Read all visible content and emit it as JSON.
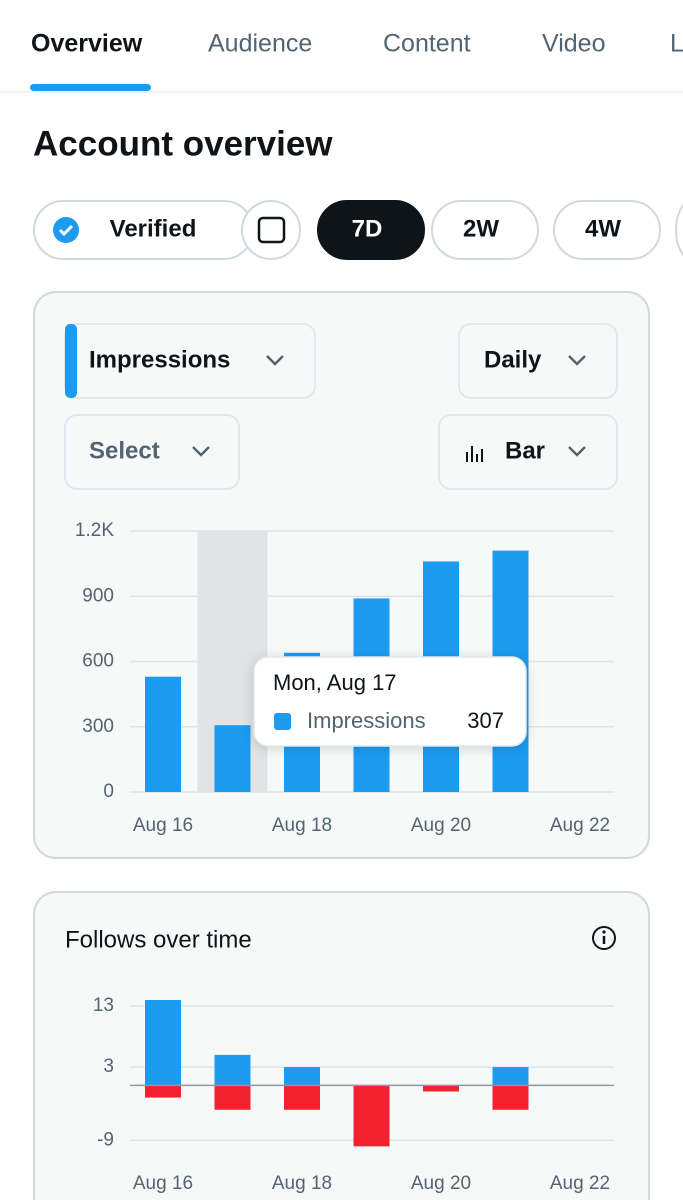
{
  "tabs": [
    "Overview",
    "Audience",
    "Content",
    "Video",
    "L"
  ],
  "active_tab": 0,
  "header": {
    "title": "Account overview"
  },
  "filters": {
    "verified": "Verified",
    "ranges": [
      "7D",
      "2W",
      "4W"
    ],
    "active_range": 0
  },
  "controls": {
    "metric": "Impressions",
    "interval": "Daily",
    "compare": "Select",
    "chart_type": "Bar"
  },
  "tooltip": {
    "title": "Mon, Aug 17",
    "label": "Impressions",
    "index": 1
  },
  "chart_data": [
    {
      "type": "bar",
      "categories": [
        "Aug 16",
        null,
        "Aug 18",
        null,
        "Aug 20",
        null,
        "Aug 22"
      ],
      "values": [
        530,
        307,
        640,
        890,
        1060,
        1110,
        null
      ],
      "color": "#1d9bf0",
      "ylim": [
        0,
        1200
      ],
      "yticks": [
        0,
        300,
        600,
        900,
        {
          "value": 1200,
          "label": "1.2K"
        }
      ],
      "grid": true
    },
    {
      "type": "stacked_bar",
      "title": "Follows over time",
      "categories": [
        "Aug 16",
        null,
        "Aug 18",
        null,
        "Aug 20",
        null,
        "Aug 22"
      ],
      "series": [
        {
          "color": "#1d9bf0",
          "values": [
            14,
            5,
            3,
            0,
            0,
            3,
            null
          ]
        },
        {
          "color": "#f4212e",
          "values": [
            -2,
            -4,
            -4,
            -10,
            -1,
            -4,
            null
          ]
        }
      ],
      "ylim": [
        -10.6,
        14
      ],
      "yticks": [
        -9,
        3,
        13
      ],
      "grid": true
    }
  ]
}
